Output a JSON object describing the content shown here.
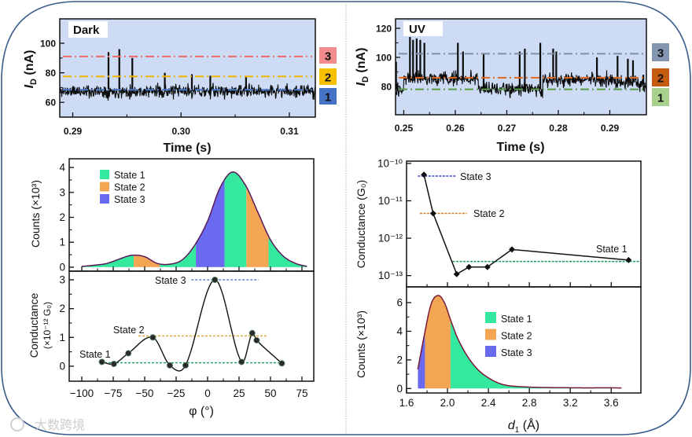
{
  "watermark": "大数跨境",
  "chart_data": [
    {
      "id": "dark",
      "type": "line",
      "label": "Dark",
      "xlabel": "Time (s)",
      "ylabel": {
        "symbol": "I",
        "sub": "D",
        "unit": " (nA)"
      },
      "xlim": [
        0.2888,
        0.3124
      ],
      "ylim": [
        50,
        116.5
      ],
      "xticks": [
        0.29,
        0.3,
        0.31
      ],
      "xtick_labels": [
        "0.29",
        "0.30",
        "0.31"
      ],
      "yticks": [
        60,
        80,
        100
      ],
      "ytick_labels": [
        "60",
        "80",
        "100"
      ],
      "levels": [
        {
          "state": "3",
          "value": 91,
          "color": "#ee6a6a",
          "box": "#f28b8b"
        },
        {
          "state": "2",
          "value": 77.5,
          "color": "#f0b400",
          "box": "#f7c000"
        },
        {
          "state": "1",
          "value": 68.5,
          "color": "#4a78c8",
          "box": "#4472c4"
        }
      ],
      "baseline_segments": [
        [
          0.2888,
          0.3124,
          67.5
        ]
      ],
      "noise_sd": 2.2,
      "spikes": [
        [
          0.2933,
          94
        ],
        [
          0.2943,
          96
        ],
        [
          0.2955,
          90
        ],
        [
          0.2985,
          80
        ],
        [
          0.301,
          79
        ],
        [
          0.3027,
          78
        ],
        [
          0.306,
          77
        ]
      ]
    },
    {
      "id": "uv",
      "type": "line",
      "label": "UV",
      "xlabel": "Time (s)",
      "ylabel": {
        "symbol": "I",
        "sub": "D",
        "unit": " (nA)"
      },
      "xlim": [
        0.2484,
        0.2971
      ],
      "ylim": [
        60.5,
        126.5
      ],
      "xticks": [
        0.25,
        0.26,
        0.27,
        0.28,
        0.29
      ],
      "xtick_labels": [
        "0.25",
        "0.26",
        "0.27",
        "0.28",
        "0.29"
      ],
      "yticks": [
        80,
        100,
        120
      ],
      "ytick_labels": [
        "80",
        "100",
        "120"
      ],
      "levels": [
        {
          "state": "3",
          "value": 102.5,
          "color": "#7f8fa8",
          "box": "#8496b0"
        },
        {
          "state": "2",
          "value": 86,
          "color": "#e06a20",
          "box": "#c55a11"
        },
        {
          "state": "1",
          "value": 78,
          "color": "#5a9a48",
          "box": "#a9d18e"
        }
      ],
      "baseline_segments": [
        [
          0.2484,
          0.25,
          78
        ],
        [
          0.25,
          0.2645,
          85.5
        ],
        [
          0.2645,
          0.277,
          78
        ],
        [
          0.277,
          0.291,
          84.5
        ],
        [
          0.291,
          0.295,
          83
        ],
        [
          0.295,
          0.2971,
          81
        ]
      ],
      "noise_sd": 2.4,
      "spikes": [
        [
          0.2485,
          97
        ],
        [
          0.2512,
          114
        ],
        [
          0.2518,
          112
        ],
        [
          0.2525,
          113
        ],
        [
          0.2532,
          112
        ],
        [
          0.254,
          110
        ],
        [
          0.2605,
          110
        ],
        [
          0.2615,
          104
        ],
        [
          0.2655,
          103
        ],
        [
          0.2725,
          104
        ],
        [
          0.2735,
          106
        ],
        [
          0.2765,
          110
        ],
        [
          0.279,
          106
        ],
        [
          0.2796,
          104
        ],
        [
          0.2875,
          100
        ],
        [
          0.2915,
          101
        ],
        [
          0.2935,
          99
        ],
        [
          0.2945,
          98
        ],
        [
          0.2965,
          88
        ]
      ]
    },
    {
      "id": "phi-hist",
      "type": "area",
      "ylabel": "Counts (×10³)",
      "xlim": [
        -110,
        84.4
      ],
      "ylim": [
        -0.16,
        4.35
      ],
      "xticks": [
        -100,
        -75,
        -50,
        -25,
        0,
        25,
        50,
        75
      ],
      "yticks": [
        0,
        1,
        2,
        3,
        4
      ],
      "ytick_labels": [
        "0",
        "1",
        "2",
        "3",
        "4"
      ],
      "x": [
        -100,
        -90,
        -80,
        -70,
        -60,
        -50,
        -40,
        -30,
        -20,
        -10,
        0,
        10,
        20,
        30,
        40,
        50,
        60,
        70,
        79
      ],
      "y": [
        0.03,
        0.08,
        0.15,
        0.33,
        0.48,
        0.42,
        0.15,
        0.12,
        0.3,
        0.9,
        1.85,
        3.2,
        3.82,
        3.3,
        2.2,
        1.1,
        0.45,
        0.15,
        0.03
      ],
      "regions": [
        {
          "state": "State 1",
          "from": -100,
          "to": -58.7
        },
        {
          "state": "State 2",
          "from": -58.7,
          "to": -38
        },
        {
          "state": "State 1",
          "from": -38,
          "to": -9.3
        },
        {
          "state": "State 3",
          "from": -9.3,
          "to": 13.5
        },
        {
          "state": "State 1",
          "from": 13.5,
          "to": 30.8
        },
        {
          "state": "State 2",
          "from": 30.8,
          "to": 48.5
        },
        {
          "state": "State 1",
          "from": 48.5,
          "to": 79
        }
      ],
      "legend": [
        {
          "label": "State 1",
          "color": "#34e89e"
        },
        {
          "label": "State 2",
          "color": "#f2a654"
        },
        {
          "label": "State 3",
          "color": "#6a6af0"
        }
      ],
      "outline_color": "#5a1a5a"
    },
    {
      "id": "phi-conductance",
      "type": "line",
      "xlabel": "φ (°)",
      "ylabel": "Conductance",
      "ylabel2": "(×10⁻¹² G₀)",
      "xlim": [
        -110,
        84.4
      ],
      "ylim": [
        -0.52,
        3.3
      ],
      "xticks": [
        -100,
        -75,
        -50,
        -25,
        0,
        25,
        50,
        75
      ],
      "xtick_labels": [
        "−100",
        "−75",
        "−50",
        "−25",
        "0",
        "25",
        "50",
        "75"
      ],
      "yticks": [
        0,
        1,
        2,
        3
      ],
      "ytick_labels": [
        "0",
        "1",
        "2",
        "3"
      ],
      "x": [
        -84,
        -74.5,
        -63,
        -43.5,
        -30,
        -17.5,
        5.8,
        27,
        35.5,
        39,
        59
      ],
      "y": [
        0.15,
        0.08,
        0.45,
        1.0,
        0.03,
        0.03,
        3.0,
        0.15,
        1.15,
        0.9,
        0.1
      ],
      "reference_lines": [
        {
          "state": "State 1",
          "value": 0.12,
          "from": -85,
          "to": 60,
          "color": "#1a9a5a"
        },
        {
          "state": "State 2",
          "value": 1.05,
          "from": -55,
          "to": 47.5,
          "color": "#e0a030"
        },
        {
          "state": "State 3",
          "value": 3.0,
          "from": -13,
          "to": 40.5,
          "color": "#4a6ad0"
        }
      ]
    },
    {
      "id": "d1-conductance",
      "type": "line",
      "ylabel": "Conductance (G₀)",
      "yscale": "log",
      "xlim": [
        1.6,
        3.89
      ],
      "ylim": [
        5e-14,
        1.15e-10
      ],
      "xticks": [
        1.6,
        2.0,
        2.4,
        2.8,
        3.2,
        3.6
      ],
      "yticks": [
        1e-13,
        1e-12,
        1e-11,
        1e-10
      ],
      "ytick_labels": [
        "10⁻¹³",
        "10⁻¹²",
        "10⁻¹¹",
        "10⁻¹⁰"
      ],
      "x": [
        1.77,
        1.86,
        2.09,
        2.21,
        2.39,
        2.63,
        3.77
      ],
      "y": [
        5e-11,
        4.6e-12,
        1.1e-13,
        1.7e-13,
        1.7e-13,
        5e-13,
        2.6e-13
      ],
      "reference_lines": [
        {
          "state": "State 3",
          "value": 4.6e-11,
          "from": 1.71,
          "to": 2.09,
          "color": "#3a4ac8"
        },
        {
          "state": "State 2",
          "value": 4.6e-12,
          "from": 1.73,
          "to": 2.19,
          "color": "#d08020"
        },
        {
          "state": "State 1",
          "value": 2.4e-13,
          "from": 2.05,
          "to": 3.89,
          "color": "#1a9a5a"
        }
      ]
    },
    {
      "id": "d1-hist",
      "type": "area",
      "xlabel": {
        "symbol": "d",
        "sub": "1",
        "unit": " (Å)"
      },
      "ylabel": "Counts (×10³)",
      "xlim": [
        1.6,
        3.89
      ],
      "ylim": [
        -0.31,
        7.1
      ],
      "xticks": [
        1.6,
        2.0,
        2.4,
        2.8,
        3.2,
        3.6
      ],
      "xtick_labels": [
        "1.6",
        "2.0",
        "2.4",
        "2.8",
        "3.2",
        "3.6"
      ],
      "yticks": [
        0,
        2,
        4,
        6
      ],
      "ytick_labels": [
        "0",
        "2",
        "4",
        "6"
      ],
      "x": [
        1.71,
        1.77,
        1.84,
        1.91,
        1.97,
        2.03,
        2.1,
        2.2,
        2.3,
        2.4,
        2.5,
        2.6,
        2.8,
        3.0,
        3.3,
        3.6,
        3.7
      ],
      "y": [
        1.35,
        3.6,
        5.9,
        6.5,
        6.0,
        4.8,
        3.5,
        2.2,
        1.3,
        0.75,
        0.38,
        0.2,
        0.1,
        0.07,
        0.05,
        0.05,
        0.04
      ],
      "regions": [
        {
          "state": "State 3",
          "from": 1.71,
          "to": 1.78
        },
        {
          "state": "State 2",
          "from": 1.78,
          "to": 2.03
        },
        {
          "state": "State 1",
          "from": 2.03,
          "to": 3.6
        }
      ],
      "legend": [
        {
          "label": "State 1",
          "color": "#34e89e"
        },
        {
          "label": "State 2",
          "color": "#f2a654"
        },
        {
          "label": "State 3",
          "color": "#6a6af0"
        }
      ],
      "outline_color": "#7a1a3a"
    }
  ]
}
